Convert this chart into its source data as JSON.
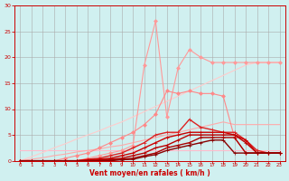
{
  "background_color": "#d0f0f0",
  "grid_color": "#aaaaaa",
  "xlabel": "Vent moyen/en rafales ( km/h )",
  "xlabel_color": "#cc0000",
  "tick_color": "#cc0000",
  "xlim": [
    -0.5,
    23.5
  ],
  "ylim": [
    0,
    30
  ],
  "xticks": [
    0,
    1,
    2,
    3,
    4,
    5,
    6,
    7,
    8,
    9,
    10,
    11,
    12,
    13,
    14,
    15,
    16,
    17,
    18,
    19,
    20,
    21,
    22,
    23
  ],
  "yticks": [
    0,
    5,
    10,
    15,
    20,
    25,
    30
  ],
  "series": [
    {
      "x": [
        0,
        1,
        2,
        3,
        4,
        5,
        6,
        7,
        8,
        9,
        10,
        11,
        12,
        13,
        14,
        15,
        16,
        17,
        18,
        19,
        20,
        21,
        22,
        23
      ],
      "y": [
        2.0,
        2.0,
        2.0,
        2.0,
        2.0,
        2.0,
        2.0,
        2.0,
        2.0,
        2.0,
        2.0,
        2.0,
        2.0,
        2.0,
        2.0,
        2.0,
        2.0,
        2.0,
        2.0,
        2.0,
        2.0,
        2.0,
        2.0,
        2.0
      ],
      "color": "#ffbbcc",
      "lw": 0.8,
      "marker": null
    },
    {
      "x": [
        0,
        1,
        2,
        3,
        4,
        5,
        6,
        7,
        8,
        9,
        10,
        11,
        12,
        13,
        14,
        15,
        16,
        17,
        18,
        19,
        20,
        21,
        22,
        23
      ],
      "y": [
        0.0,
        0.8,
        1.6,
        2.5,
        3.3,
        4.2,
        5.0,
        5.8,
        6.7,
        7.5,
        8.5,
        9.5,
        10.5,
        11.5,
        12.5,
        13.5,
        14.5,
        15.5,
        16.5,
        17.5,
        18.5,
        19.0,
        19.0,
        19.0
      ],
      "color": "#ffcccc",
      "lw": 0.8,
      "marker": null
    },
    {
      "x": [
        0,
        1,
        2,
        3,
        4,
        5,
        6,
        7,
        8,
        9,
        10,
        11,
        12,
        13,
        14,
        15,
        16,
        17,
        18,
        19,
        20,
        21,
        22,
        23
      ],
      "y": [
        0.0,
        0.3,
        0.6,
        1.0,
        1.3,
        1.7,
        2.0,
        2.3,
        2.7,
        3.0,
        3.5,
        4.0,
        4.5,
        5.0,
        5.5,
        6.0,
        6.5,
        7.0,
        7.5,
        7.0,
        7.0,
        7.0,
        7.0,
        7.0
      ],
      "color": "#ffaaaa",
      "lw": 0.8,
      "marker": null
    },
    {
      "x": [
        0,
        1,
        2,
        3,
        4,
        5,
        6,
        7,
        8,
        9,
        10,
        11,
        12,
        13,
        14,
        15,
        16,
        17,
        18,
        19,
        20,
        21,
        22,
        23
      ],
      "y": [
        0.0,
        0.0,
        0.0,
        0.0,
        0.0,
        0.0,
        0.5,
        1.0,
        1.5,
        2.0,
        3.0,
        18.5,
        27.0,
        8.5,
        18.0,
        21.5,
        20.0,
        19.0,
        19.0,
        19.0,
        19.0,
        19.0,
        19.0,
        19.0
      ],
      "color": "#ff9999",
      "lw": 0.8,
      "marker": "D",
      "markersize": 2
    },
    {
      "x": [
        0,
        1,
        2,
        3,
        4,
        5,
        6,
        7,
        8,
        9,
        10,
        11,
        12,
        13,
        14,
        15,
        16,
        17,
        18,
        19,
        20,
        21,
        22,
        23
      ],
      "y": [
        0.0,
        0.0,
        0.0,
        0.0,
        0.5,
        1.0,
        1.5,
        2.5,
        3.5,
        4.5,
        5.5,
        7.0,
        9.0,
        13.5,
        13.0,
        13.5,
        13.0,
        13.0,
        12.5,
        4.5,
        1.5,
        1.5,
        1.5,
        1.5
      ],
      "color": "#ff8888",
      "lw": 0.8,
      "marker": "D",
      "markersize": 2
    },
    {
      "x": [
        0,
        1,
        2,
        3,
        4,
        5,
        6,
        7,
        8,
        9,
        10,
        11,
        12,
        13,
        14,
        15,
        16,
        17,
        18,
        19,
        20,
        21,
        22,
        23
      ],
      "y": [
        0.0,
        0.0,
        0.0,
        0.0,
        0.0,
        0.0,
        0.3,
        0.5,
        1.0,
        1.5,
        2.5,
        3.5,
        5.0,
        5.5,
        5.5,
        8.0,
        6.5,
        6.0,
        5.5,
        5.5,
        4.0,
        2.0,
        1.5,
        1.5
      ],
      "color": "#dd2222",
      "lw": 1.0,
      "marker": "+",
      "markersize": 3
    },
    {
      "x": [
        0,
        1,
        2,
        3,
        4,
        5,
        6,
        7,
        8,
        9,
        10,
        11,
        12,
        13,
        14,
        15,
        16,
        17,
        18,
        19,
        20,
        21,
        22,
        23
      ],
      "y": [
        0.0,
        0.0,
        0.0,
        0.0,
        0.0,
        0.0,
        0.2,
        0.3,
        0.5,
        1.0,
        1.5,
        2.5,
        3.5,
        4.5,
        5.0,
        5.5,
        5.5,
        5.5,
        5.5,
        5.0,
        4.0,
        1.5,
        1.5,
        1.5
      ],
      "color": "#cc0000",
      "lw": 1.0,
      "marker": "+",
      "markersize": 3
    },
    {
      "x": [
        0,
        1,
        2,
        3,
        4,
        5,
        6,
        7,
        8,
        9,
        10,
        11,
        12,
        13,
        14,
        15,
        16,
        17,
        18,
        19,
        20,
        21,
        22,
        23
      ],
      "y": [
        0.0,
        0.0,
        0.0,
        0.0,
        0.0,
        0.0,
        0.0,
        0.2,
        0.3,
        0.5,
        1.0,
        1.5,
        2.5,
        3.0,
        4.0,
        5.0,
        5.0,
        5.0,
        5.0,
        5.0,
        3.5,
        1.5,
        1.5,
        1.5
      ],
      "color": "#bb0000",
      "lw": 1.0,
      "marker": "+",
      "markersize": 3
    },
    {
      "x": [
        0,
        1,
        2,
        3,
        4,
        5,
        6,
        7,
        8,
        9,
        10,
        11,
        12,
        13,
        14,
        15,
        16,
        17,
        18,
        19,
        20,
        21,
        22,
        23
      ],
      "y": [
        0.0,
        0.0,
        0.0,
        0.0,
        0.0,
        0.0,
        0.0,
        0.0,
        0.2,
        0.3,
        0.5,
        1.0,
        1.5,
        2.5,
        3.0,
        3.5,
        4.5,
        4.5,
        4.5,
        4.5,
        1.5,
        1.5,
        1.5,
        1.5
      ],
      "color": "#aa0000",
      "lw": 1.0,
      "marker": "+",
      "markersize": 3
    },
    {
      "x": [
        0,
        1,
        2,
        3,
        4,
        5,
        6,
        7,
        8,
        9,
        10,
        11,
        12,
        13,
        14,
        15,
        16,
        17,
        18,
        19,
        20,
        21,
        22,
        23
      ],
      "y": [
        0.0,
        0.0,
        0.0,
        0.0,
        0.0,
        0.0,
        0.0,
        0.0,
        0.0,
        0.2,
        0.3,
        0.8,
        1.2,
        2.0,
        2.5,
        3.0,
        3.5,
        4.0,
        4.0,
        1.5,
        1.5,
        1.5,
        1.5,
        1.5
      ],
      "color": "#880000",
      "lw": 1.0,
      "marker": "+",
      "markersize": 3
    }
  ]
}
